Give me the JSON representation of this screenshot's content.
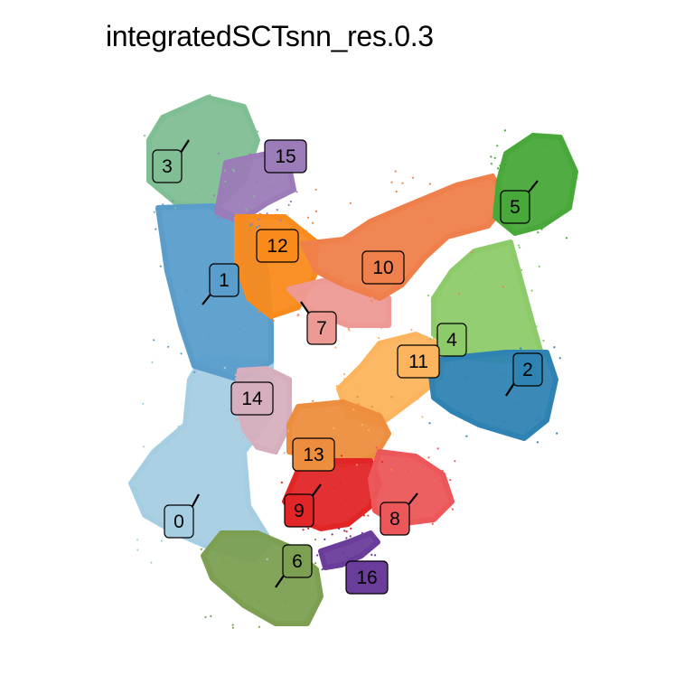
{
  "chart_data": {
    "type": "scatter",
    "title": "integratedSCTsnn_res.0.3",
    "xlabel": "",
    "ylabel": "",
    "grid": false,
    "legend": "none",
    "clusters": [
      {
        "id": "0",
        "label": "0",
        "color": "#A6CEE3"
      },
      {
        "id": "1",
        "label": "1",
        "color": "#5A9DCB"
      },
      {
        "id": "2",
        "label": "2",
        "color": "#2F83B2"
      },
      {
        "id": "3",
        "label": "3",
        "color": "#80BE94"
      },
      {
        "id": "4",
        "label": "4",
        "color": "#8DCB6A"
      },
      {
        "id": "5",
        "label": "5",
        "color": "#48A83A"
      },
      {
        "id": "6",
        "label": "6",
        "color": "#7C9F52"
      },
      {
        "id": "7",
        "label": "7",
        "color": "#EE9A94"
      },
      {
        "id": "8",
        "label": "8",
        "color": "#EC575A"
      },
      {
        "id": "9",
        "label": "9",
        "color": "#E22628"
      },
      {
        "id": "10",
        "label": "10",
        "color": "#EF7F4B"
      },
      {
        "id": "11",
        "label": "11",
        "color": "#FDB45E"
      },
      {
        "id": "12",
        "label": "12",
        "color": "#F98A1C"
      },
      {
        "id": "13",
        "label": "13",
        "color": "#EC8E3E"
      },
      {
        "id": "14",
        "label": "14",
        "color": "#D6AFBF"
      },
      {
        "id": "15",
        "label": "15",
        "color": "#9B7BB8"
      },
      {
        "id": "16",
        "label": "16",
        "color": "#6A3D9A"
      }
    ]
  }
}
